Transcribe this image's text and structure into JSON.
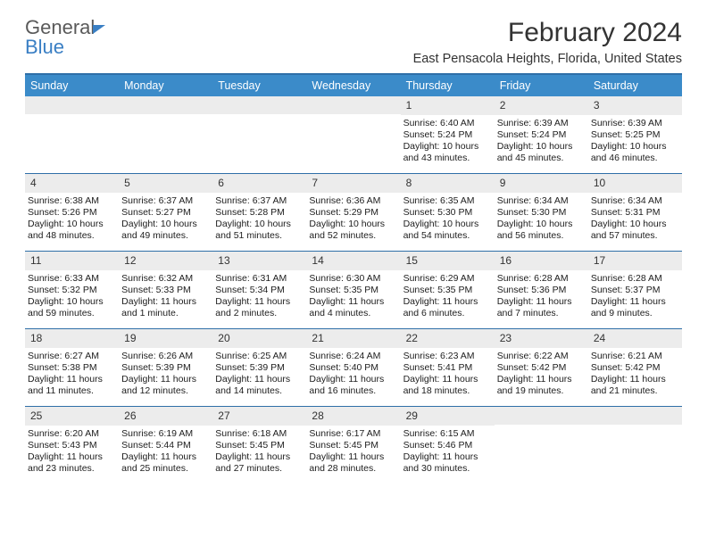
{
  "logo": {
    "word1": "General",
    "word2": "Blue"
  },
  "title": "February 2024",
  "location": "East Pensacola Heights, Florida, United States",
  "colors": {
    "header_bg": "#3b8bc9",
    "border": "#2f6fa8",
    "date_bar_bg": "#ececec",
    "logo_blue": "#3a7fc4"
  },
  "day_names": [
    "Sunday",
    "Monday",
    "Tuesday",
    "Wednesday",
    "Thursday",
    "Friday",
    "Saturday"
  ],
  "weeks": [
    [
      null,
      null,
      null,
      null,
      {
        "d": "1",
        "sr": "Sunrise: 6:40 AM",
        "ss": "Sunset: 5:24 PM",
        "dl": "Daylight: 10 hours and 43 minutes."
      },
      {
        "d": "2",
        "sr": "Sunrise: 6:39 AM",
        "ss": "Sunset: 5:24 PM",
        "dl": "Daylight: 10 hours and 45 minutes."
      },
      {
        "d": "3",
        "sr": "Sunrise: 6:39 AM",
        "ss": "Sunset: 5:25 PM",
        "dl": "Daylight: 10 hours and 46 minutes."
      }
    ],
    [
      {
        "d": "4",
        "sr": "Sunrise: 6:38 AM",
        "ss": "Sunset: 5:26 PM",
        "dl": "Daylight: 10 hours and 48 minutes."
      },
      {
        "d": "5",
        "sr": "Sunrise: 6:37 AM",
        "ss": "Sunset: 5:27 PM",
        "dl": "Daylight: 10 hours and 49 minutes."
      },
      {
        "d": "6",
        "sr": "Sunrise: 6:37 AM",
        "ss": "Sunset: 5:28 PM",
        "dl": "Daylight: 10 hours and 51 minutes."
      },
      {
        "d": "7",
        "sr": "Sunrise: 6:36 AM",
        "ss": "Sunset: 5:29 PM",
        "dl": "Daylight: 10 hours and 52 minutes."
      },
      {
        "d": "8",
        "sr": "Sunrise: 6:35 AM",
        "ss": "Sunset: 5:30 PM",
        "dl": "Daylight: 10 hours and 54 minutes."
      },
      {
        "d": "9",
        "sr": "Sunrise: 6:34 AM",
        "ss": "Sunset: 5:30 PM",
        "dl": "Daylight: 10 hours and 56 minutes."
      },
      {
        "d": "10",
        "sr": "Sunrise: 6:34 AM",
        "ss": "Sunset: 5:31 PM",
        "dl": "Daylight: 10 hours and 57 minutes."
      }
    ],
    [
      {
        "d": "11",
        "sr": "Sunrise: 6:33 AM",
        "ss": "Sunset: 5:32 PM",
        "dl": "Daylight: 10 hours and 59 minutes."
      },
      {
        "d": "12",
        "sr": "Sunrise: 6:32 AM",
        "ss": "Sunset: 5:33 PM",
        "dl": "Daylight: 11 hours and 1 minute."
      },
      {
        "d": "13",
        "sr": "Sunrise: 6:31 AM",
        "ss": "Sunset: 5:34 PM",
        "dl": "Daylight: 11 hours and 2 minutes."
      },
      {
        "d": "14",
        "sr": "Sunrise: 6:30 AM",
        "ss": "Sunset: 5:35 PM",
        "dl": "Daylight: 11 hours and 4 minutes."
      },
      {
        "d": "15",
        "sr": "Sunrise: 6:29 AM",
        "ss": "Sunset: 5:35 PM",
        "dl": "Daylight: 11 hours and 6 minutes."
      },
      {
        "d": "16",
        "sr": "Sunrise: 6:28 AM",
        "ss": "Sunset: 5:36 PM",
        "dl": "Daylight: 11 hours and 7 minutes."
      },
      {
        "d": "17",
        "sr": "Sunrise: 6:28 AM",
        "ss": "Sunset: 5:37 PM",
        "dl": "Daylight: 11 hours and 9 minutes."
      }
    ],
    [
      {
        "d": "18",
        "sr": "Sunrise: 6:27 AM",
        "ss": "Sunset: 5:38 PM",
        "dl": "Daylight: 11 hours and 11 minutes."
      },
      {
        "d": "19",
        "sr": "Sunrise: 6:26 AM",
        "ss": "Sunset: 5:39 PM",
        "dl": "Daylight: 11 hours and 12 minutes."
      },
      {
        "d": "20",
        "sr": "Sunrise: 6:25 AM",
        "ss": "Sunset: 5:39 PM",
        "dl": "Daylight: 11 hours and 14 minutes."
      },
      {
        "d": "21",
        "sr": "Sunrise: 6:24 AM",
        "ss": "Sunset: 5:40 PM",
        "dl": "Daylight: 11 hours and 16 minutes."
      },
      {
        "d": "22",
        "sr": "Sunrise: 6:23 AM",
        "ss": "Sunset: 5:41 PM",
        "dl": "Daylight: 11 hours and 18 minutes."
      },
      {
        "d": "23",
        "sr": "Sunrise: 6:22 AM",
        "ss": "Sunset: 5:42 PM",
        "dl": "Daylight: 11 hours and 19 minutes."
      },
      {
        "d": "24",
        "sr": "Sunrise: 6:21 AM",
        "ss": "Sunset: 5:42 PM",
        "dl": "Daylight: 11 hours and 21 minutes."
      }
    ],
    [
      {
        "d": "25",
        "sr": "Sunrise: 6:20 AM",
        "ss": "Sunset: 5:43 PM",
        "dl": "Daylight: 11 hours and 23 minutes."
      },
      {
        "d": "26",
        "sr": "Sunrise: 6:19 AM",
        "ss": "Sunset: 5:44 PM",
        "dl": "Daylight: 11 hours and 25 minutes."
      },
      {
        "d": "27",
        "sr": "Sunrise: 6:18 AM",
        "ss": "Sunset: 5:45 PM",
        "dl": "Daylight: 11 hours and 27 minutes."
      },
      {
        "d": "28",
        "sr": "Sunrise: 6:17 AM",
        "ss": "Sunset: 5:45 PM",
        "dl": "Daylight: 11 hours and 28 minutes."
      },
      {
        "d": "29",
        "sr": "Sunrise: 6:15 AM",
        "ss": "Sunset: 5:46 PM",
        "dl": "Daylight: 11 hours and 30 minutes."
      },
      null,
      null
    ]
  ]
}
